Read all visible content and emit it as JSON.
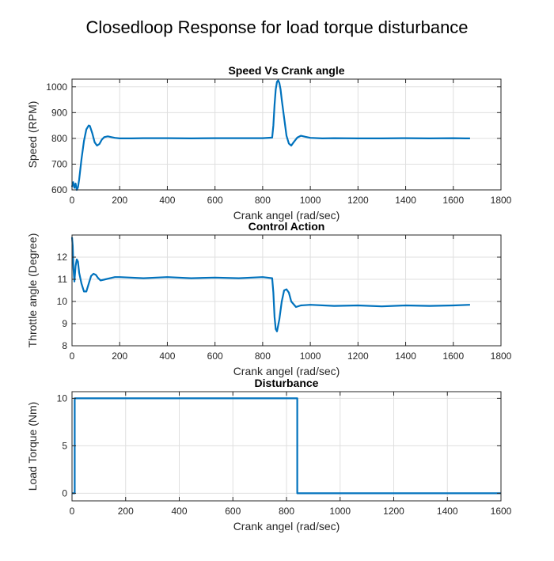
{
  "figure": {
    "title": "Closedloop Response for load torque disturbance",
    "line_color": "#0072BD"
  },
  "chart_data": [
    {
      "type": "line",
      "title": "Speed Vs Crank angle",
      "xlabel": "Crank angel (rad/sec)",
      "ylabel": "Speed (RPM)",
      "xlim": [
        0,
        1800
      ],
      "ylim": [
        600,
        1030
      ],
      "xticks": [
        0,
        200,
        400,
        600,
        800,
        1000,
        1200,
        1400,
        1600,
        1800
      ],
      "yticks": [
        600,
        700,
        800,
        900,
        1000
      ],
      "grid": true,
      "series": [
        {
          "x": [
            0,
            5,
            10,
            15,
            20,
            25,
            30,
            40,
            50,
            60,
            70,
            75,
            85,
            95,
            105,
            115,
            125,
            135,
            150,
            165,
            180,
            200,
            250,
            300,
            400,
            500,
            600,
            700,
            800,
            840,
            845,
            850,
            855,
            860,
            865,
            870,
            875,
            880,
            890,
            900,
            910,
            920,
            930,
            945,
            960,
            980,
            1000,
            1050,
            1100,
            1200,
            1300,
            1400,
            1500,
            1600,
            1650,
            1670
          ],
          "y": [
            612,
            630,
            608,
            625,
            600,
            610,
            640,
            720,
            790,
            835,
            850,
            848,
            820,
            785,
            772,
            778,
            795,
            805,
            808,
            805,
            802,
            800,
            800,
            801,
            801,
            800,
            801,
            801,
            801,
            803,
            850,
            930,
            990,
            1020,
            1025,
            1015,
            990,
            950,
            880,
            810,
            780,
            772,
            785,
            803,
            810,
            806,
            802,
            800,
            801,
            800,
            800,
            801,
            800,
            801,
            800,
            800
          ]
        }
      ]
    },
    {
      "type": "line",
      "title": "Control Action",
      "xlabel": "Crank angel (rad/sec)",
      "ylabel": "Throttle angle (Degree)",
      "xlim": [
        0,
        1800
      ],
      "ylim": [
        8,
        13
      ],
      "xticks": [
        0,
        200,
        400,
        600,
        800,
        1000,
        1200,
        1400,
        1600,
        1800
      ],
      "yticks": [
        8,
        9,
        10,
        11,
        12
      ],
      "grid": true,
      "series": [
        {
          "x": [
            0,
            3,
            6,
            10,
            15,
            20,
            25,
            30,
            40,
            50,
            60,
            70,
            80,
            90,
            100,
            110,
            120,
            140,
            160,
            180,
            200,
            300,
            400,
            500,
            600,
            700,
            800,
            840,
            845,
            850,
            855,
            860,
            870,
            880,
            890,
            900,
            910,
            920,
            940,
            960,
            1000,
            1100,
            1200,
            1300,
            1400,
            1500,
            1600,
            1670
          ],
          "y": [
            12.9,
            12.5,
            11.5,
            10.9,
            11.6,
            11.9,
            11.8,
            11.3,
            10.8,
            10.45,
            10.45,
            10.8,
            11.15,
            11.25,
            11.2,
            11.05,
            10.95,
            11.0,
            11.05,
            11.1,
            11.1,
            11.05,
            11.1,
            11.05,
            11.08,
            11.05,
            11.1,
            11.05,
            10.4,
            9.3,
            8.75,
            8.65,
            9.2,
            10.0,
            10.5,
            10.55,
            10.4,
            10.0,
            9.75,
            9.82,
            9.85,
            9.8,
            9.82,
            9.78,
            9.82,
            9.8,
            9.82,
            9.85
          ]
        }
      ]
    },
    {
      "type": "line",
      "title": "Disturbance",
      "xlabel": "Crank angel (rad/sec)",
      "ylabel": "Load Torque (Nm)",
      "xlim": [
        0,
        1600
      ],
      "ylim": [
        -0.8,
        10.7
      ],
      "xticks": [
        0,
        200,
        400,
        600,
        800,
        1000,
        1200,
        1400,
        1600
      ],
      "yticks": [
        0,
        5,
        10
      ],
      "grid": true,
      "series": [
        {
          "x": [
            0,
            10,
            10,
            840,
            840,
            1600
          ],
          "y": [
            0,
            0,
            10,
            10,
            0,
            0
          ]
        }
      ]
    }
  ]
}
